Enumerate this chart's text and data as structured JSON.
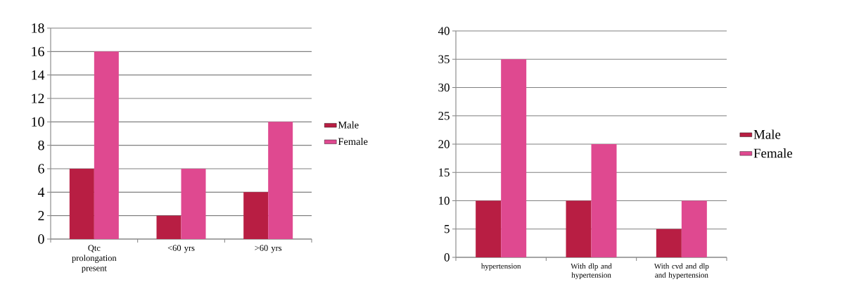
{
  "chart_data": [
    {
      "type": "bar",
      "categories": [
        "Qtc prolongation present",
        "<60 yrs",
        ">60 yrs"
      ],
      "series": [
        {
          "name": "Male",
          "color": "#b81e43",
          "values": [
            6,
            2,
            4
          ]
        },
        {
          "name": "Female",
          "color": "#df4990",
          "values": [
            16,
            6,
            10
          ]
        }
      ],
      "ylim": [
        0,
        18
      ],
      "yticks": [
        0,
        2,
        4,
        6,
        8,
        10,
        12,
        14,
        16,
        18
      ],
      "grid": "y",
      "legend": "right"
    },
    {
      "type": "bar",
      "categories": [
        "hypertension",
        "With dlp and hypertension",
        "With cvd and dlp and hypertension"
      ],
      "series": [
        {
          "name": "Male",
          "color": "#b81e43",
          "values": [
            10,
            10,
            5
          ]
        },
        {
          "name": "Female",
          "color": "#df4990",
          "values": [
            35,
            20,
            10
          ]
        }
      ],
      "ylim": [
        0,
        40
      ],
      "yticks": [
        0,
        5,
        10,
        15,
        20,
        25,
        30,
        35,
        40
      ],
      "grid": "y",
      "legend": "right"
    }
  ]
}
